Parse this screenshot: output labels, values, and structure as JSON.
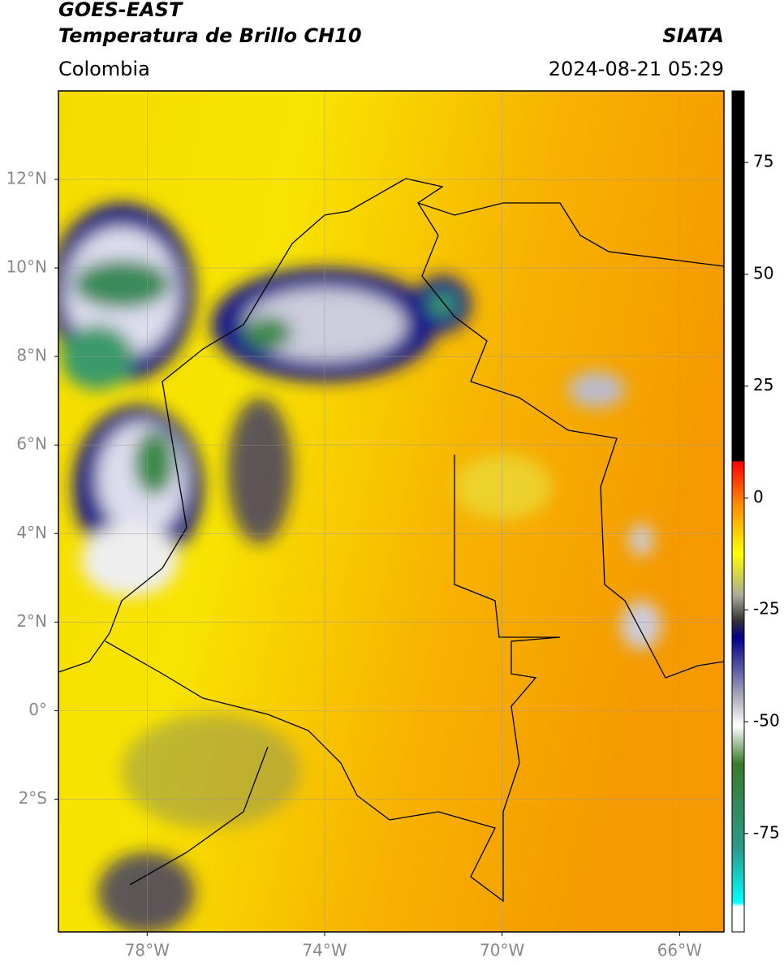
{
  "header": {
    "title": "GOES-EAST",
    "subtitle": "Temperatura de Brillo CH10",
    "source": "SIATA",
    "region": "Colombia",
    "datetime": "2024-08-21 05:29"
  },
  "map": {
    "xlim": [
      -80,
      -65
    ],
    "ylim": [
      -5,
      14
    ],
    "grid": true,
    "xticks": [
      {
        "value": -78,
        "label": "78°W"
      },
      {
        "value": -74,
        "label": "74°W"
      },
      {
        "value": -70,
        "label": "70°W"
      },
      {
        "value": -66,
        "label": "66°W"
      }
    ],
    "yticks": [
      {
        "value": 12,
        "label": "12°N"
      },
      {
        "value": 10,
        "label": "10°N"
      },
      {
        "value": 8,
        "label": "8°N"
      },
      {
        "value": 6,
        "label": "6°N"
      },
      {
        "value": 4,
        "label": "4°N"
      },
      {
        "value": 2,
        "label": "2°N"
      },
      {
        "value": 0,
        "label": "0°"
      },
      {
        "value": -2,
        "label": "2°S"
      }
    ]
  },
  "colorbar": {
    "lim": [
      -97,
      91
    ],
    "ticks": [
      75,
      50,
      25,
      0,
      -25,
      -50,
      -75
    ]
  }
}
